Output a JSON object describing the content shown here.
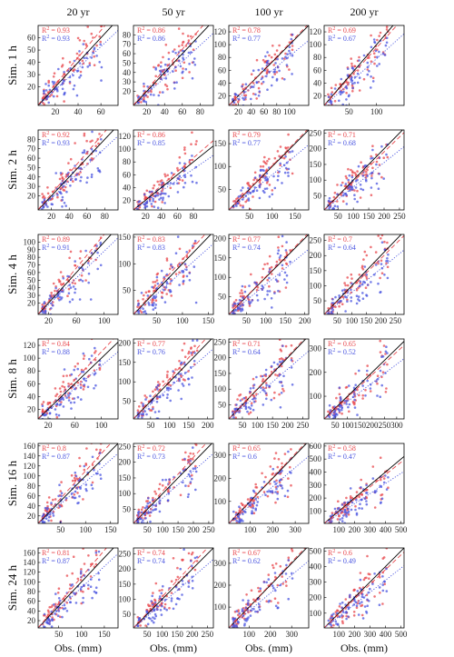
{
  "figure": {
    "col_titles": [
      "20 yr",
      "50 yr",
      "100 yr",
      "200 yr"
    ],
    "row_titles": [
      "Sim. 1 h",
      "Sim. 2 h",
      "Sim. 4 h",
      "Sim. 8 h",
      "Sim. 16 h",
      "Sim. 24 h"
    ],
    "xlabel": "Obs. (mm)",
    "r2_label": "R",
    "r2_exponent": "2",
    "colors": {
      "red": "#e8474c",
      "blue": "#4b56e0",
      "one_to_one": "#000000"
    }
  },
  "chart_data": [
    {
      "type": "scatter",
      "row": 0,
      "col": 0,
      "xticks": [
        20,
        40,
        60
      ],
      "yticks": [
        20,
        30,
        40,
        50,
        60
      ],
      "xlim": [
        5,
        75
      ],
      "ylim": [
        5,
        70
      ],
      "r2": {
        "red": "0.93",
        "blue": "0.93"
      },
      "series": [
        {
          "name": "red",
          "slope": 1.1
        },
        {
          "name": "blue",
          "slope": 0.88
        }
      ]
    },
    {
      "type": "scatter",
      "row": 0,
      "col": 1,
      "xticks": [
        20,
        40,
        60,
        80
      ],
      "yticks": [
        20,
        30,
        40,
        50,
        60,
        70,
        80
      ],
      "xlim": [
        5,
        95
      ],
      "ylim": [
        5,
        90
      ],
      "r2": {
        "red": "0.86",
        "blue": "0.86"
      },
      "series": [
        {
          "name": "red",
          "slope": 1.08
        },
        {
          "name": "blue",
          "slope": 0.86
        }
      ]
    },
    {
      "type": "scatter",
      "row": 0,
      "col": 2,
      "xticks": [
        20,
        40,
        60,
        80,
        100
      ],
      "yticks": [
        20,
        40,
        60,
        80,
        100,
        120
      ],
      "xlim": [
        5,
        130
      ],
      "ylim": [
        5,
        130
      ],
      "r2": {
        "red": "0.78",
        "blue": "0.77"
      },
      "series": [
        {
          "name": "red",
          "slope": 1.02
        },
        {
          "name": "blue",
          "slope": 0.82
        }
      ]
    },
    {
      "type": "scatter",
      "row": 0,
      "col": 3,
      "xticks": [
        50,
        100
      ],
      "yticks": [
        20,
        40,
        60,
        80,
        100,
        120
      ],
      "xlim": [
        5,
        150
      ],
      "ylim": [
        5,
        130
      ],
      "r2": {
        "red": "0.69",
        "blue": "0.67"
      },
      "series": [
        {
          "name": "red",
          "slope": 0.95
        },
        {
          "name": "blue",
          "slope": 0.78
        }
      ]
    },
    {
      "type": "scatter",
      "row": 1,
      "col": 0,
      "xticks": [
        20,
        40,
        60,
        80
      ],
      "yticks": [
        20,
        30,
        40,
        50,
        60,
        70,
        80
      ],
      "xlim": [
        5,
        95
      ],
      "ylim": [
        5,
        90
      ],
      "r2": {
        "red": "0.92",
        "blue": "0.93"
      },
      "series": [
        {
          "name": "red",
          "slope": 1.1
        },
        {
          "name": "blue",
          "slope": 0.88
        }
      ]
    },
    {
      "type": "scatter",
      "row": 1,
      "col": 1,
      "xticks": [
        20,
        40,
        60,
        80
      ],
      "yticks": [
        20,
        40,
        60,
        80,
        100,
        120
      ],
      "xlim": [
        5,
        105
      ],
      "ylim": [
        5,
        130
      ],
      "r2": {
        "red": "0.86",
        "blue": "0.85"
      },
      "series": [
        {
          "name": "red",
          "slope": 1.08
        },
        {
          "name": "blue",
          "slope": 0.86
        }
      ]
    },
    {
      "type": "scatter",
      "row": 1,
      "col": 2,
      "xticks": [
        50,
        100,
        150
      ],
      "yticks": [
        50,
        100,
        150
      ],
      "xlim": [
        5,
        180
      ],
      "ylim": [
        5,
        180
      ],
      "r2": {
        "red": "0.79",
        "blue": "0.77"
      },
      "series": [
        {
          "name": "red",
          "slope": 1.02
        },
        {
          "name": "blue",
          "slope": 0.82
        }
      ]
    },
    {
      "type": "scatter",
      "row": 1,
      "col": 3,
      "xticks": [
        50,
        100,
        150,
        200,
        250
      ],
      "yticks": [
        50,
        100,
        150,
        200,
        250
      ],
      "xlim": [
        5,
        265
      ],
      "ylim": [
        5,
        260
      ],
      "r2": {
        "red": "0.71",
        "blue": "0.68"
      },
      "series": [
        {
          "name": "red",
          "slope": 0.95
        },
        {
          "name": "blue",
          "slope": 0.78
        }
      ]
    },
    {
      "type": "scatter",
      "row": 2,
      "col": 0,
      "xticks": [
        20,
        60,
        100
      ],
      "yticks": [
        20,
        30,
        40,
        50,
        60,
        70,
        80,
        90,
        100
      ],
      "xlim": [
        5,
        120
      ],
      "ylim": [
        5,
        110
      ],
      "r2": {
        "red": "0.89",
        "blue": "0.91"
      },
      "series": [
        {
          "name": "red",
          "slope": 1.1
        },
        {
          "name": "blue",
          "slope": 0.88
        }
      ]
    },
    {
      "type": "scatter",
      "row": 2,
      "col": 1,
      "xticks": [
        50,
        100,
        150
      ],
      "yticks": [
        50,
        100,
        150
      ],
      "xlim": [
        5,
        160
      ],
      "ylim": [
        5,
        155
      ],
      "r2": {
        "red": "0.83",
        "blue": "0.83"
      },
      "series": [
        {
          "name": "red",
          "slope": 1.08
        },
        {
          "name": "blue",
          "slope": 0.86
        }
      ]
    },
    {
      "type": "scatter",
      "row": 2,
      "col": 2,
      "xticks": [
        50,
        100,
        150,
        200
      ],
      "yticks": [
        50,
        100,
        150,
        200
      ],
      "xlim": [
        5,
        210
      ],
      "ylim": [
        5,
        210
      ],
      "r2": {
        "red": "0.77",
        "blue": "0.74"
      },
      "series": [
        {
          "name": "red",
          "slope": 1.02
        },
        {
          "name": "blue",
          "slope": 0.82
        }
      ]
    },
    {
      "type": "scatter",
      "row": 2,
      "col": 3,
      "xticks": [
        50,
        100,
        150,
        200,
        250
      ],
      "yticks": [
        50,
        100,
        150,
        200,
        250
      ],
      "xlim": [
        5,
        280
      ],
      "ylim": [
        5,
        270
      ],
      "r2": {
        "red": "0.7",
        "blue": "0.64"
      },
      "series": [
        {
          "name": "red",
          "slope": 0.95
        },
        {
          "name": "blue",
          "slope": 0.78
        }
      ]
    },
    {
      "type": "scatter",
      "row": 3,
      "col": 0,
      "xticks": [
        20,
        60,
        100
      ],
      "yticks": [
        20,
        40,
        60,
        80,
        100,
        120
      ],
      "xlim": [
        5,
        125
      ],
      "ylim": [
        5,
        130
      ],
      "r2": {
        "red": "0.84",
        "blue": "0.88"
      },
      "series": [
        {
          "name": "red",
          "slope": 1.1
        },
        {
          "name": "blue",
          "slope": 0.88
        }
      ]
    },
    {
      "type": "scatter",
      "row": 3,
      "col": 1,
      "xticks": [
        50,
        100,
        150,
        200
      ],
      "yticks": [
        50,
        100,
        150,
        200
      ],
      "xlim": [
        5,
        215
      ],
      "ylim": [
        5,
        210
      ],
      "r2": {
        "red": "0.77",
        "blue": "0.76"
      },
      "series": [
        {
          "name": "red",
          "slope": 1.08
        },
        {
          "name": "blue",
          "slope": 0.86
        }
      ]
    },
    {
      "type": "scatter",
      "row": 3,
      "col": 2,
      "xticks": [
        50,
        100,
        150,
        200,
        250
      ],
      "yticks": [
        50,
        100,
        150,
        200,
        250
      ],
      "xlim": [
        5,
        270
      ],
      "ylim": [
        5,
        260
      ],
      "r2": {
        "red": "0.71",
        "blue": "0.64"
      },
      "series": [
        {
          "name": "red",
          "slope": 1.02
        },
        {
          "name": "blue",
          "slope": 0.82
        }
      ]
    },
    {
      "type": "scatter",
      "row": 3,
      "col": 3,
      "xticks": [
        50,
        100,
        150,
        200,
        250,
        300
      ],
      "yticks": [
        100,
        200,
        300
      ],
      "xlim": [
        5,
        330
      ],
      "ylim": [
        5,
        340
      ],
      "r2": {
        "red": "0.65",
        "blue": "0.52"
      },
      "series": [
        {
          "name": "red",
          "slope": 0.95
        },
        {
          "name": "blue",
          "slope": 0.78
        }
      ]
    },
    {
      "type": "scatter",
      "row": 4,
      "col": 0,
      "xticks": [
        50,
        100,
        150
      ],
      "yticks": [
        20,
        40,
        60,
        80,
        100,
        120,
        140,
        160
      ],
      "xlim": [
        5,
        165
      ],
      "ylim": [
        5,
        165
      ],
      "r2": {
        "red": "0.8",
        "blue": "0.87"
      },
      "series": [
        {
          "name": "red",
          "slope": 1.1
        },
        {
          "name": "blue",
          "slope": 0.88
        }
      ]
    },
    {
      "type": "scatter",
      "row": 4,
      "col": 1,
      "xticks": [
        50,
        100,
        150,
        200,
        250
      ],
      "yticks": [
        50,
        100,
        150,
        200,
        250
      ],
      "xlim": [
        5,
        265
      ],
      "ylim": [
        5,
        260
      ],
      "r2": {
        "red": "0.72",
        "blue": "0.73"
      },
      "series": [
        {
          "name": "red",
          "slope": 1.08
        },
        {
          "name": "blue",
          "slope": 0.86
        }
      ]
    },
    {
      "type": "scatter",
      "row": 4,
      "col": 2,
      "xticks": [
        100,
        200,
        300
      ],
      "yticks": [
        100,
        200,
        300
      ],
      "xlim": [
        5,
        360
      ],
      "ylim": [
        5,
        350
      ],
      "r2": {
        "red": "0.65",
        "blue": "0.6"
      },
      "series": [
        {
          "name": "red",
          "slope": 1.02
        },
        {
          "name": "blue",
          "slope": 0.82
        }
      ]
    },
    {
      "type": "scatter",
      "row": 4,
      "col": 3,
      "xticks": [
        100,
        200,
        300,
        400,
        500
      ],
      "yticks": [
        100,
        200,
        300,
        400,
        500,
        600
      ],
      "xlim": [
        5,
        520
      ],
      "ylim": [
        5,
        620
      ],
      "r2": {
        "red": "0.58",
        "blue": "0.47"
      },
      "series": [
        {
          "name": "red",
          "slope": 0.95
        },
        {
          "name": "blue",
          "slope": 0.78
        }
      ]
    },
    {
      "type": "scatter",
      "row": 5,
      "col": 0,
      "xticks": [
        50,
        100,
        150
      ],
      "yticks": [
        20,
        40,
        60,
        80,
        100,
        120,
        140,
        160
      ],
      "xlim": [
        5,
        180
      ],
      "ylim": [
        5,
        170
      ],
      "r2": {
        "red": "0.81",
        "blue": "0.87"
      },
      "series": [
        {
          "name": "red",
          "slope": 1.1
        },
        {
          "name": "blue",
          "slope": 0.88
        }
      ]
    },
    {
      "type": "scatter",
      "row": 5,
      "col": 1,
      "xticks": [
        50,
        100,
        150,
        200,
        250
      ],
      "yticks": [
        50,
        100,
        150,
        200,
        250
      ],
      "xlim": [
        5,
        270
      ],
      "ylim": [
        5,
        270
      ],
      "r2": {
        "red": "0.74",
        "blue": "0.74"
      },
      "series": [
        {
          "name": "red",
          "slope": 1.08
        },
        {
          "name": "blue",
          "slope": 0.86
        }
      ]
    },
    {
      "type": "scatter",
      "row": 5,
      "col": 2,
      "xticks": [
        100,
        200,
        300
      ],
      "yticks": [
        100,
        200,
        300
      ],
      "xlim": [
        5,
        380
      ],
      "ylim": [
        5,
        370
      ],
      "r2": {
        "red": "0.67",
        "blue": "0.62"
      },
      "series": [
        {
          "name": "red",
          "slope": 1.02
        },
        {
          "name": "blue",
          "slope": 0.82
        }
      ]
    },
    {
      "type": "scatter",
      "row": 5,
      "col": 3,
      "xticks": [
        100,
        200,
        300,
        400,
        500
      ],
      "yticks": [
        100,
        200,
        300,
        400,
        500
      ],
      "xlim": [
        5,
        520
      ],
      "ylim": [
        5,
        520
      ],
      "r2": {
        "red": "0.6",
        "blue": "0.49"
      },
      "series": [
        {
          "name": "red",
          "slope": 0.95
        },
        {
          "name": "blue",
          "slope": 0.78
        }
      ]
    }
  ]
}
